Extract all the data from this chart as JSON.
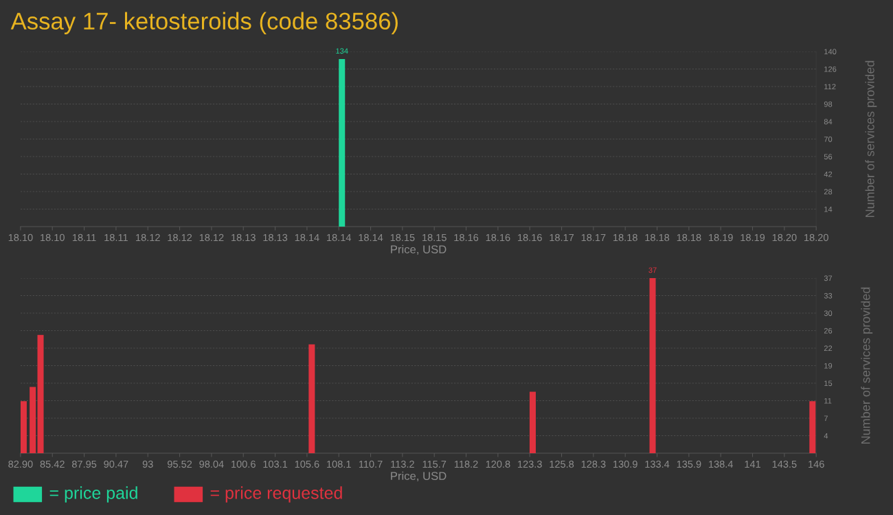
{
  "chart_data": [
    {
      "type": "bar",
      "title": "Assay 17- ketosteroids (code 83586)",
      "xlabel": "Price, USD",
      "ylabel": "Number of services provided",
      "x": [
        18.14
      ],
      "series": [
        {
          "name": "= price paid",
          "color": "#1fd69a",
          "values": [
            134
          ],
          "value_labels": [
            "134"
          ]
        }
      ],
      "xlim": [
        18.1,
        18.2
      ],
      "xticks": [
        {
          "value": 18.1,
          "label": "18.10"
        },
        {
          "value": 18.104,
          "label": "18.10"
        },
        {
          "value": 18.108,
          "label": "18.11"
        },
        {
          "value": 18.112,
          "label": "18.11"
        },
        {
          "value": 18.116,
          "label": "18.12"
        },
        {
          "value": 18.12,
          "label": "18.12"
        },
        {
          "value": 18.124,
          "label": "18.12"
        },
        {
          "value": 18.128,
          "label": "18.13"
        },
        {
          "value": 18.132,
          "label": "18.13"
        },
        {
          "value": 18.136,
          "label": "18.14"
        },
        {
          "value": 18.14,
          "label": "18.14"
        },
        {
          "value": 18.144,
          "label": "18.14"
        },
        {
          "value": 18.148,
          "label": "18.15"
        },
        {
          "value": 18.152,
          "label": "18.15"
        },
        {
          "value": 18.156,
          "label": "18.16"
        },
        {
          "value": 18.16,
          "label": "18.16"
        },
        {
          "value": 18.164,
          "label": "18.16"
        },
        {
          "value": 18.168,
          "label": "18.17"
        },
        {
          "value": 18.172,
          "label": "18.17"
        },
        {
          "value": 18.176,
          "label": "18.18"
        },
        {
          "value": 18.18,
          "label": "18.18"
        },
        {
          "value": 18.184,
          "label": "18.18"
        },
        {
          "value": 18.188,
          "label": "18.19"
        },
        {
          "value": 18.192,
          "label": "18.19"
        },
        {
          "value": 18.196,
          "label": "18.20"
        },
        {
          "value": 18.2,
          "label": "18.20"
        }
      ],
      "ylim": [
        0,
        140
      ],
      "yticks": [
        14,
        28,
        42,
        56,
        70,
        84,
        98,
        112,
        126,
        140
      ],
      "grid": "y",
      "legend": "bottom left"
    },
    {
      "type": "bar",
      "xlabel": "Price, USD",
      "ylabel": "Number of services provided",
      "x": [
        82.9,
        83.62,
        84.24,
        105.75,
        123.27,
        132.78,
        145.46
      ],
      "series": [
        {
          "name": "= price requested",
          "color": "#e0323f",
          "values": [
            11,
            14,
            25,
            23,
            13,
            37,
            11
          ],
          "value_labels": [
            null,
            null,
            null,
            null,
            null,
            "37",
            null
          ]
        }
      ],
      "xlim": [
        82.9,
        146
      ],
      "xticks": [
        {
          "value": 82.9,
          "label": "82.90"
        },
        {
          "value": 85.424,
          "label": "85.42"
        },
        {
          "value": 87.948,
          "label": "87.95"
        },
        {
          "value": 90.472,
          "label": "90.47"
        },
        {
          "value": 92.996,
          "label": "93"
        },
        {
          "value": 95.52,
          "label": "95.52"
        },
        {
          "value": 98.044,
          "label": "98.04"
        },
        {
          "value": 100.568,
          "label": "100.6"
        },
        {
          "value": 103.092,
          "label": "103.1"
        },
        {
          "value": 105.616,
          "label": "105.6"
        },
        {
          "value": 108.14,
          "label": "108.1"
        },
        {
          "value": 110.664,
          "label": "110.7"
        },
        {
          "value": 113.188,
          "label": "113.2"
        },
        {
          "value": 115.712,
          "label": "115.7"
        },
        {
          "value": 118.236,
          "label": "118.2"
        },
        {
          "value": 120.76,
          "label": "120.8"
        },
        {
          "value": 123.284,
          "label": "123.3"
        },
        {
          "value": 125.808,
          "label": "125.8"
        },
        {
          "value": 128.332,
          "label": "128.3"
        },
        {
          "value": 130.856,
          "label": "130.9"
        },
        {
          "value": 133.38,
          "label": "133.4"
        },
        {
          "value": 135.904,
          "label": "135.9"
        },
        {
          "value": 138.428,
          "label": "138.4"
        },
        {
          "value": 140.952,
          "label": "141"
        },
        {
          "value": 143.476,
          "label": "143.5"
        },
        {
          "value": 146,
          "label": "146"
        }
      ],
      "ylim": [
        0,
        37
      ],
      "yticks": [
        {
          "value": 3.7,
          "label": "4"
        },
        {
          "value": 7.4,
          "label": "7"
        },
        {
          "value": 11.1,
          "label": "11"
        },
        {
          "value": 14.8,
          "label": "15"
        },
        {
          "value": 18.5,
          "label": "19"
        },
        {
          "value": 22.2,
          "label": "22"
        },
        {
          "value": 25.9,
          "label": "26"
        },
        {
          "value": 29.6,
          "label": "30"
        },
        {
          "value": 33.3,
          "label": "33"
        },
        {
          "value": 37,
          "label": "37"
        }
      ],
      "grid": "y",
      "legend": "bottom left"
    }
  ]
}
